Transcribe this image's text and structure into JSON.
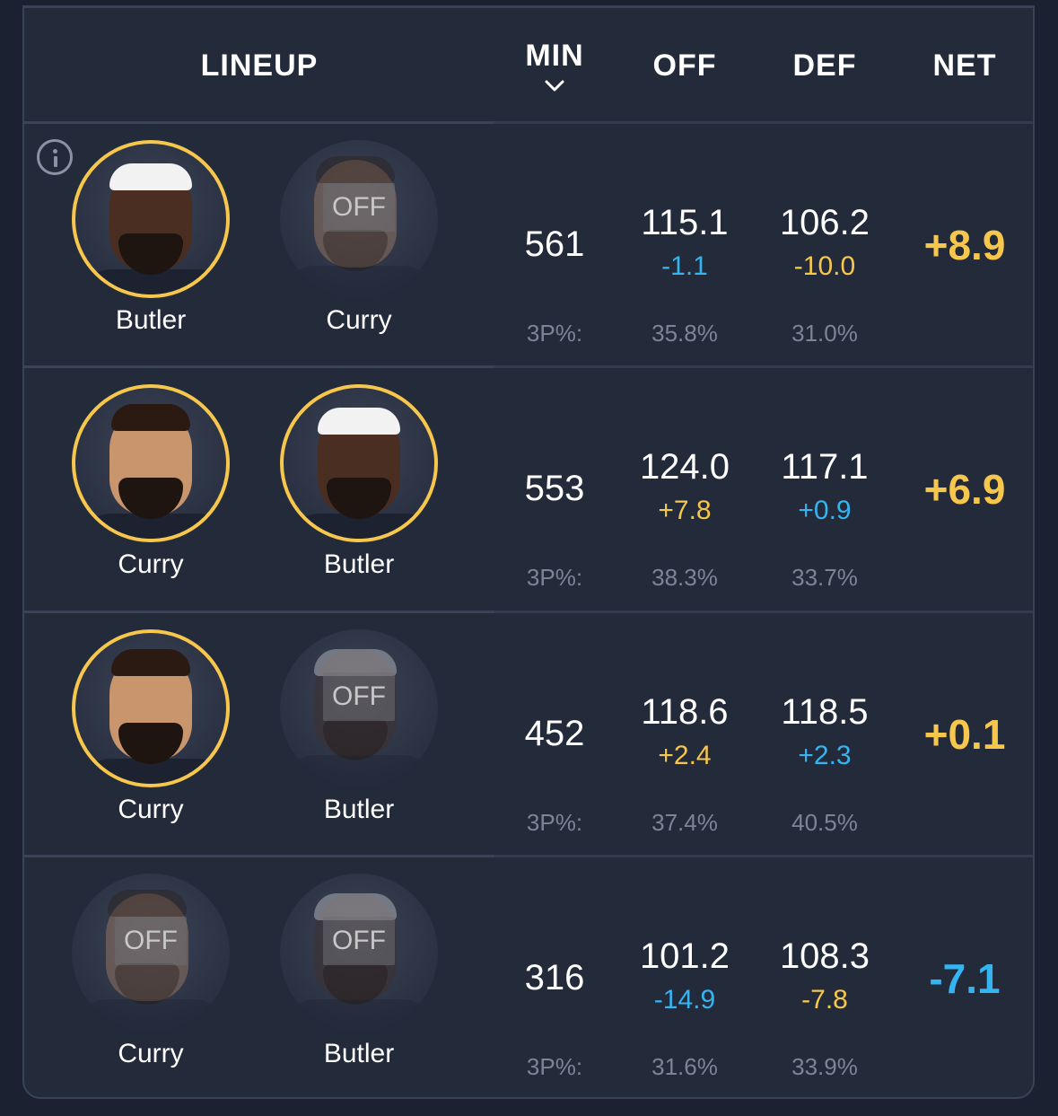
{
  "header": {
    "lineup": "LINEUP",
    "min": "MIN",
    "off": "OFF",
    "def": "DEF",
    "net": "NET",
    "sort_icon": "chevron-down-icon"
  },
  "colors": {
    "positive": "#f6c64d",
    "negative": "#35b4f2",
    "active_ring": "#f6c64d"
  },
  "off_badge": "OFF",
  "threep_label": "3P%:",
  "rows": [
    {
      "players": [
        {
          "name": "Butler",
          "status": "on"
        },
        {
          "name": "Curry",
          "status": "off"
        }
      ],
      "min": "561",
      "off": {
        "value": "115.1",
        "delta": "-1.1",
        "delta_color": "blue"
      },
      "def": {
        "value": "106.2",
        "delta": "-10.0",
        "delta_color": "gold"
      },
      "net": {
        "value": "+8.9",
        "color": "gold"
      },
      "threep": {
        "off": "35.8%",
        "def": "31.0%"
      }
    },
    {
      "players": [
        {
          "name": "Curry",
          "status": "on"
        },
        {
          "name": "Butler",
          "status": "on"
        }
      ],
      "min": "553",
      "off": {
        "value": "124.0",
        "delta": "+7.8",
        "delta_color": "gold"
      },
      "def": {
        "value": "117.1",
        "delta": "+0.9",
        "delta_color": "blue"
      },
      "net": {
        "value": "+6.9",
        "color": "gold"
      },
      "threep": {
        "off": "38.3%",
        "def": "33.7%"
      }
    },
    {
      "players": [
        {
          "name": "Curry",
          "status": "on"
        },
        {
          "name": "Butler",
          "status": "off"
        }
      ],
      "min": "452",
      "off": {
        "value": "118.6",
        "delta": "+2.4",
        "delta_color": "gold"
      },
      "def": {
        "value": "118.5",
        "delta": "+2.3",
        "delta_color": "blue"
      },
      "net": {
        "value": "+0.1",
        "color": "gold"
      },
      "threep": {
        "off": "37.4%",
        "def": "40.5%"
      }
    },
    {
      "players": [
        {
          "name": "Curry",
          "status": "off"
        },
        {
          "name": "Butler",
          "status": "off"
        }
      ],
      "min": "316",
      "off": {
        "value": "101.2",
        "delta": "-14.9",
        "delta_color": "blue"
      },
      "def": {
        "value": "108.3",
        "delta": "-7.8",
        "delta_color": "gold"
      },
      "net": {
        "value": "-7.1",
        "color": "blue"
      },
      "threep": {
        "off": "31.6%",
        "def": "33.9%"
      }
    }
  ]
}
